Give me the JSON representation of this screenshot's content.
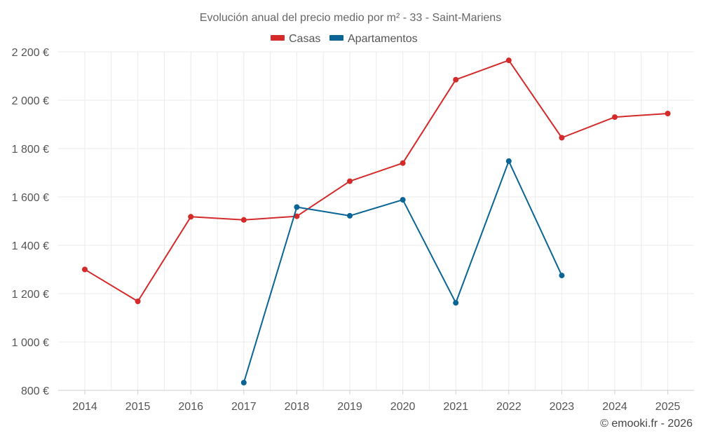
{
  "chart_data": {
    "type": "line",
    "title": "Evolución anual del precio medio por m² - 33 - Saint-Mariens",
    "categories": [
      "2014",
      "2015",
      "2016",
      "2017",
      "2018",
      "2019",
      "2020",
      "2021",
      "2022",
      "2023",
      "2024",
      "2025"
    ],
    "series": [
      {
        "name": "Casas",
        "color": "#d42a2a",
        "values": [
          1300,
          1168,
          1518,
          1505,
          1520,
          1665,
          1740,
          2085,
          2165,
          1845,
          1930,
          1945
        ]
      },
      {
        "name": "Apartamentos",
        "color": "#0a6494",
        "values": [
          null,
          null,
          null,
          832,
          1558,
          1522,
          1588,
          1162,
          1748,
          1275,
          null,
          null
        ]
      }
    ],
    "ylim": [
      800,
      2200
    ],
    "yticks": [
      800,
      1000,
      1200,
      1400,
      1600,
      1800,
      2000,
      2200
    ],
    "ytick_labels": [
      "800 €",
      "1 000 €",
      "1 200 €",
      "1 400 €",
      "1 600 €",
      "1 800 €",
      "2 000 €",
      "2 200 €"
    ],
    "legend_position": "top-center",
    "grid": true
  },
  "credit": "© emooki.fr - 2026"
}
